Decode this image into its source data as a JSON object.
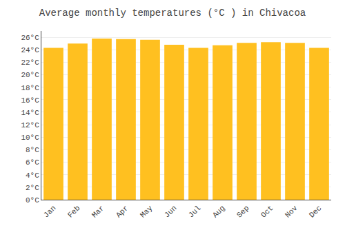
{
  "chart_data": {
    "type": "bar",
    "title": "Average monthly temperatures (°C ) in Chivacoa",
    "categories": [
      "Jan",
      "Feb",
      "Mar",
      "Apr",
      "May",
      "Jun",
      "Jul",
      "Aug",
      "Sep",
      "Oct",
      "Nov",
      "Dec"
    ],
    "values": [
      24.3,
      25.0,
      25.8,
      25.7,
      25.6,
      24.8,
      24.3,
      24.7,
      25.1,
      25.2,
      25.1,
      24.3
    ],
    "color": "#FFC020",
    "ylim": [
      0,
      27
    ],
    "yticks": [
      {
        "value": 0,
        "label": "0°C"
      },
      {
        "value": 2,
        "label": "2°C"
      },
      {
        "value": 4,
        "label": "4°C"
      },
      {
        "value": 6,
        "label": "6°C"
      },
      {
        "value": 8,
        "label": "8°C"
      },
      {
        "value": 10,
        "label": "10°C"
      },
      {
        "value": 12,
        "label": "12°C"
      },
      {
        "value": 14,
        "label": "14°C"
      },
      {
        "value": 16,
        "label": "16°C"
      },
      {
        "value": 18,
        "label": "18°C"
      },
      {
        "value": 20,
        "label": "20°C"
      },
      {
        "value": 22,
        "label": "22°C"
      },
      {
        "value": 24,
        "label": "24°C"
      },
      {
        "value": 26,
        "label": "26°C"
      }
    ],
    "grid": true
  }
}
